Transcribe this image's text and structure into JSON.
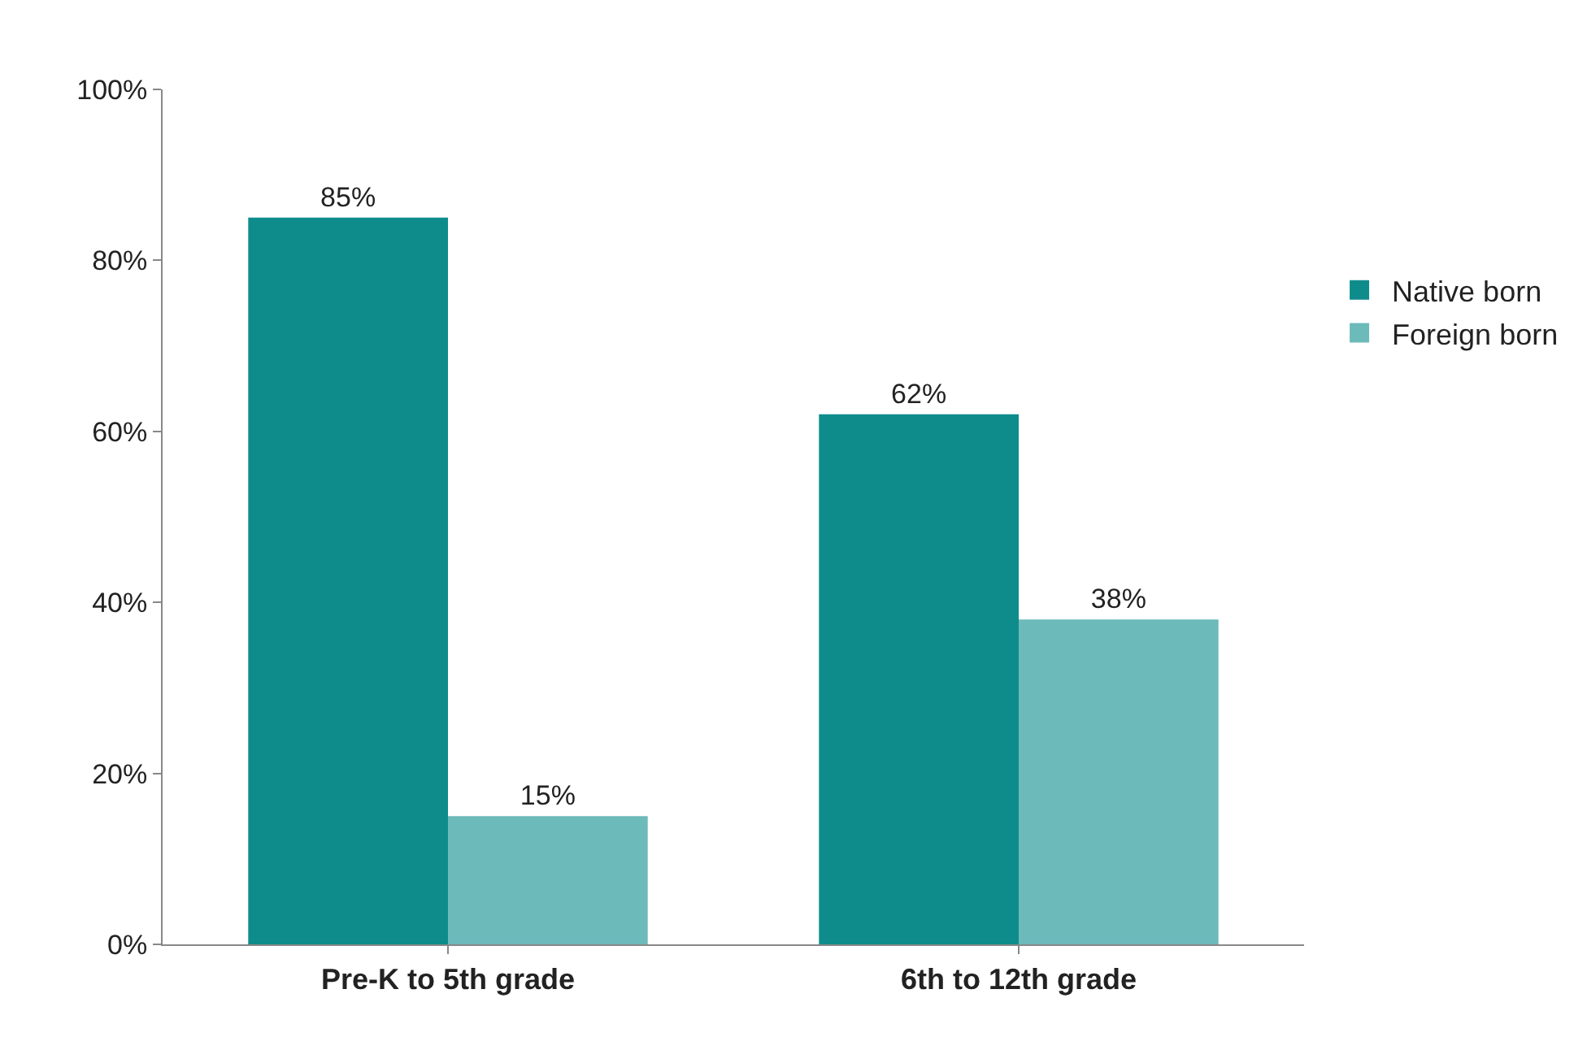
{
  "chart_data": {
    "type": "bar",
    "categories": [
      "Pre-K to 5th grade",
      "6th to 12th grade"
    ],
    "series": [
      {
        "name": "Native born",
        "color": "#0e8c8c",
        "values": [
          85,
          62
        ],
        "value_labels": [
          "85%",
          "62%"
        ]
      },
      {
        "name": "Foreign born",
        "color": "#6dbaba",
        "values": [
          15,
          38
        ],
        "value_labels": [
          "15%",
          "38%"
        ]
      }
    ],
    "ylim": [
      0,
      100
    ],
    "yticks": [
      {
        "value": 0,
        "label": "0%"
      },
      {
        "value": 20,
        "label": "20%"
      },
      {
        "value": 40,
        "label": "40%"
      },
      {
        "value": 60,
        "label": "60%"
      },
      {
        "value": 80,
        "label": "80%"
      },
      {
        "value": 100,
        "label": "100%"
      }
    ],
    "grid": false,
    "legend": "right"
  }
}
